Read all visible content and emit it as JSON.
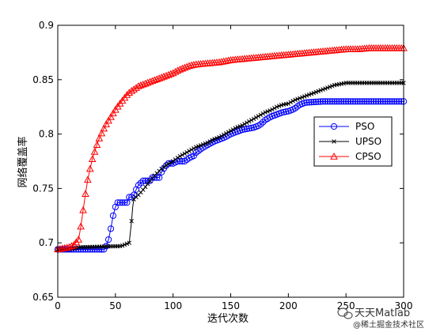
{
  "chart_data": {
    "type": "line",
    "title": "",
    "xlabel": "迭代次数",
    "ylabel": "网络覆盖率",
    "xlim": [
      0,
      300
    ],
    "ylim": [
      0.65,
      0.9
    ],
    "xticks": [
      0,
      50,
      100,
      150,
      200,
      250,
      300
    ],
    "yticks": [
      0.65,
      0.7,
      0.75,
      0.8,
      0.85,
      0.9
    ],
    "xtick_labels": [
      "0",
      "50",
      "100",
      "150",
      "200",
      "250",
      "300"
    ],
    "ytick_labels": [
      "0.65",
      "0.7",
      "0.75",
      "0.8",
      "0.85",
      "0.9"
    ],
    "grid": false,
    "legend": "right-middle",
    "series": [
      {
        "name": "PSO",
        "color": "#0000ff",
        "marker": "circle",
        "points": [
          [
            0,
            0.694
          ],
          [
            40,
            0.694
          ],
          [
            42,
            0.697
          ],
          [
            44,
            0.703
          ],
          [
            46,
            0.713
          ],
          [
            48,
            0.725
          ],
          [
            50,
            0.733
          ],
          [
            52,
            0.737
          ],
          [
            60,
            0.737
          ],
          [
            62,
            0.742
          ],
          [
            64,
            0.742
          ],
          [
            66,
            0.744
          ],
          [
            68,
            0.749
          ],
          [
            70,
            0.753
          ],
          [
            72,
            0.755
          ],
          [
            74,
            0.757
          ],
          [
            80,
            0.757
          ],
          [
            82,
            0.76
          ],
          [
            88,
            0.76
          ],
          [
            90,
            0.765
          ],
          [
            93,
            0.77
          ],
          [
            96,
            0.773
          ],
          [
            100,
            0.773
          ],
          [
            104,
            0.775
          ],
          [
            110,
            0.775
          ],
          [
            114,
            0.778
          ],
          [
            118,
            0.78
          ],
          [
            120,
            0.783
          ],
          [
            125,
            0.787
          ],
          [
            130,
            0.79
          ],
          [
            135,
            0.793
          ],
          [
            140,
            0.795
          ],
          [
            145,
            0.797
          ],
          [
            150,
            0.8
          ],
          [
            155,
            0.802
          ],
          [
            160,
            0.804
          ],
          [
            165,
            0.805
          ],
          [
            170,
            0.806
          ],
          [
            175,
            0.808
          ],
          [
            180,
            0.813
          ],
          [
            185,
            0.816
          ],
          [
            190,
            0.818
          ],
          [
            195,
            0.82
          ],
          [
            200,
            0.821
          ],
          [
            205,
            0.823
          ],
          [
            210,
            0.827
          ],
          [
            215,
            0.829
          ],
          [
            230,
            0.83
          ],
          [
            300,
            0.83
          ]
        ]
      },
      {
        "name": "UPSO",
        "color": "#000000",
        "marker": "x",
        "points": [
          [
            0,
            0.694
          ],
          [
            10,
            0.694
          ],
          [
            20,
            0.696
          ],
          [
            55,
            0.697
          ],
          [
            62,
            0.7
          ],
          [
            64,
            0.72
          ],
          [
            65,
            0.733
          ],
          [
            66,
            0.74
          ],
          [
            70,
            0.744
          ],
          [
            75,
            0.75
          ],
          [
            80,
            0.757
          ],
          [
            85,
            0.763
          ],
          [
            90,
            0.768
          ],
          [
            95,
            0.772
          ],
          [
            100,
            0.775
          ],
          [
            105,
            0.779
          ],
          [
            110,
            0.782
          ],
          [
            115,
            0.785
          ],
          [
            120,
            0.788
          ],
          [
            125,
            0.79
          ],
          [
            130,
            0.792
          ],
          [
            135,
            0.795
          ],
          [
            140,
            0.797
          ],
          [
            145,
            0.8
          ],
          [
            150,
            0.803
          ],
          [
            155,
            0.806
          ],
          [
            160,
            0.808
          ],
          [
            165,
            0.811
          ],
          [
            170,
            0.814
          ],
          [
            175,
            0.817
          ],
          [
            180,
            0.82
          ],
          [
            185,
            0.822
          ],
          [
            190,
            0.825
          ],
          [
            195,
            0.827
          ],
          [
            200,
            0.828
          ],
          [
            205,
            0.831
          ],
          [
            210,
            0.833
          ],
          [
            215,
            0.835
          ],
          [
            220,
            0.837
          ],
          [
            225,
            0.839
          ],
          [
            230,
            0.841
          ],
          [
            235,
            0.843
          ],
          [
            240,
            0.845
          ],
          [
            245,
            0.846
          ],
          [
            250,
            0.847
          ],
          [
            300,
            0.847
          ]
        ]
      },
      {
        "name": "CPSO",
        "color": "#ff0000",
        "marker": "triangle",
        "points": [
          [
            0,
            0.694
          ],
          [
            5,
            0.695
          ],
          [
            10,
            0.696
          ],
          [
            14,
            0.698
          ],
          [
            18,
            0.703
          ],
          [
            20,
            0.715
          ],
          [
            22,
            0.73
          ],
          [
            24,
            0.745
          ],
          [
            26,
            0.758
          ],
          [
            28,
            0.768
          ],
          [
            30,
            0.777
          ],
          [
            33,
            0.787
          ],
          [
            36,
            0.796
          ],
          [
            39,
            0.803
          ],
          [
            42,
            0.809
          ],
          [
            45,
            0.814
          ],
          [
            48,
            0.819
          ],
          [
            51,
            0.824
          ],
          [
            54,
            0.828
          ],
          [
            57,
            0.832
          ],
          [
            60,
            0.836
          ],
          [
            63,
            0.839
          ],
          [
            66,
            0.841
          ],
          [
            70,
            0.844
          ],
          [
            75,
            0.846
          ],
          [
            80,
            0.848
          ],
          [
            85,
            0.85
          ],
          [
            90,
            0.852
          ],
          [
            95,
            0.854
          ],
          [
            100,
            0.856
          ],
          [
            105,
            0.859
          ],
          [
            110,
            0.861
          ],
          [
            115,
            0.863
          ],
          [
            120,
            0.864
          ],
          [
            130,
            0.865
          ],
          [
            140,
            0.866
          ],
          [
            150,
            0.868
          ],
          [
            160,
            0.869
          ],
          [
            170,
            0.87
          ],
          [
            180,
            0.871
          ],
          [
            190,
            0.872
          ],
          [
            200,
            0.873
          ],
          [
            210,
            0.874
          ],
          [
            220,
            0.875
          ],
          [
            230,
            0.876
          ],
          [
            240,
            0.877
          ],
          [
            250,
            0.878
          ],
          [
            260,
            0.878
          ],
          [
            270,
            0.879
          ],
          [
            280,
            0.879
          ],
          [
            290,
            0.879
          ],
          [
            300,
            0.879
          ]
        ]
      }
    ]
  },
  "watermark": {
    "line1": "天天Matlab",
    "line2": "@稀土掘金技术社区"
  }
}
